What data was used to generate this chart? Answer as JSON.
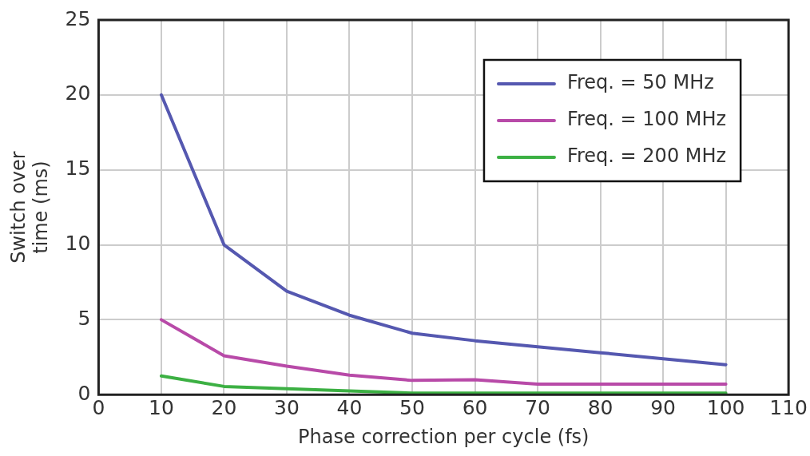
{
  "chart_data": {
    "type": "line",
    "xlabel": "Phase correction per cycle (fs)",
    "ylabel": "Switch over time (ms)",
    "x": [
      10,
      20,
      30,
      40,
      50,
      60,
      70,
      80,
      90,
      100
    ],
    "series": [
      {
        "name": "Freq. = 50 MHz",
        "color": "#5558b0",
        "values": [
          20,
          10,
          6.9,
          5.3,
          4.1,
          3.6,
          3.2,
          2.8,
          2.4,
          2.0
        ]
      },
      {
        "name": "Freq. = 100 MHz",
        "color": "#b84aa8",
        "values": [
          5.0,
          2.6,
          1.9,
          1.3,
          0.95,
          1.0,
          0.7,
          0.7,
          0.7,
          0.7
        ]
      },
      {
        "name": "Freq. = 200 MHz",
        "color": "#3cb043",
        "values": [
          1.25,
          0.55,
          0.4,
          0.25,
          0.1,
          0.1,
          0.1,
          0.1,
          0.1,
          0.1
        ]
      }
    ],
    "xlim": [
      0,
      110
    ],
    "xticks": [
      0,
      10,
      20,
      30,
      40,
      50,
      60,
      70,
      80,
      90,
      100,
      110
    ],
    "ylim": [
      0,
      25
    ],
    "yticks": [
      0,
      5,
      10,
      15,
      20,
      25
    ],
    "grid": true,
    "legend": "top right",
    "marker": "none",
    "line_style": "solid"
  }
}
